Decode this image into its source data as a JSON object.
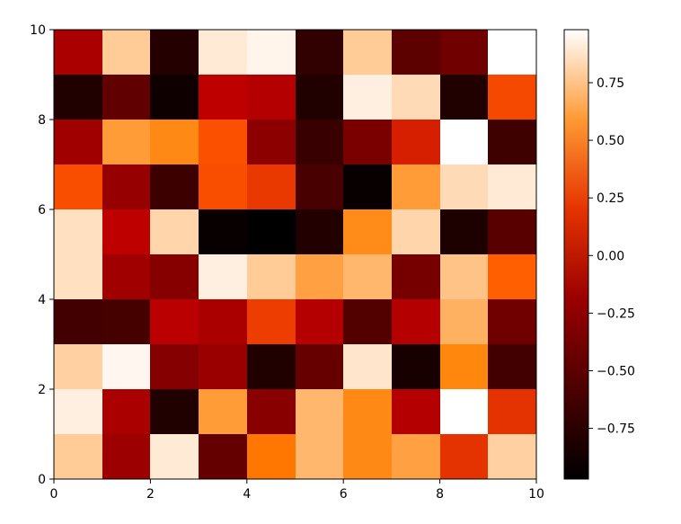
{
  "chart_data": {
    "type": "heatmap",
    "colormap": "gist_heat",
    "xlim": [
      0,
      10
    ],
    "ylim": [
      0,
      10
    ],
    "x_ticks": [
      "0",
      "2",
      "4",
      "6",
      "8",
      "10"
    ],
    "y_ticks": [
      "0",
      "2",
      "4",
      "6",
      "8",
      "10"
    ],
    "rows_top_to_bottom": [
      [
        -0.1,
        0.78,
        -0.78,
        0.9,
        0.94,
        -0.72,
        0.78,
        -0.5,
        -0.4,
        0.98
      ],
      [
        -0.8,
        -0.48,
        -0.9,
        0.0,
        -0.05,
        -0.8,
        0.92,
        0.84,
        -0.8,
        0.28
      ],
      [
        -0.15,
        0.6,
        0.53,
        0.31,
        -0.25,
        -0.68,
        -0.35,
        0.12,
        0.98,
        -0.65
      ],
      [
        0.3,
        -0.2,
        -0.66,
        0.3,
        0.22,
        -0.6,
        -0.93,
        0.6,
        0.84,
        0.9
      ],
      [
        0.86,
        0.0,
        0.82,
        -0.93,
        -0.97,
        -0.79,
        0.54,
        0.82,
        -0.82,
        -0.52
      ],
      [
        0.86,
        -0.15,
        -0.28,
        0.92,
        0.78,
        0.62,
        0.7,
        -0.37,
        0.75,
        0.37
      ],
      [
        -0.63,
        -0.62,
        -0.02,
        -0.1,
        0.24,
        -0.05,
        -0.55,
        -0.05,
        0.68,
        -0.4
      ],
      [
        0.8,
        0.95,
        -0.29,
        -0.18,
        -0.8,
        -0.45,
        0.88,
        -0.85,
        0.52,
        -0.63
      ],
      [
        0.92,
        -0.1,
        -0.8,
        0.6,
        -0.27,
        0.7,
        0.53,
        -0.05,
        0.98,
        0.2
      ],
      [
        0.78,
        -0.17,
        0.9,
        -0.46,
        0.46,
        0.7,
        0.53,
        0.62,
        0.2,
        0.8
      ]
    ],
    "colorbar": {
      "vmin": -0.97,
      "vmax": 0.98,
      "ticks": [
        -0.75,
        -0.5,
        -0.25,
        0.0,
        0.25,
        0.5,
        0.75
      ],
      "tick_labels": [
        "−0.75",
        "−0.50",
        "−0.25",
        "0.00",
        "0.25",
        "0.50",
        "0.75"
      ]
    }
  }
}
